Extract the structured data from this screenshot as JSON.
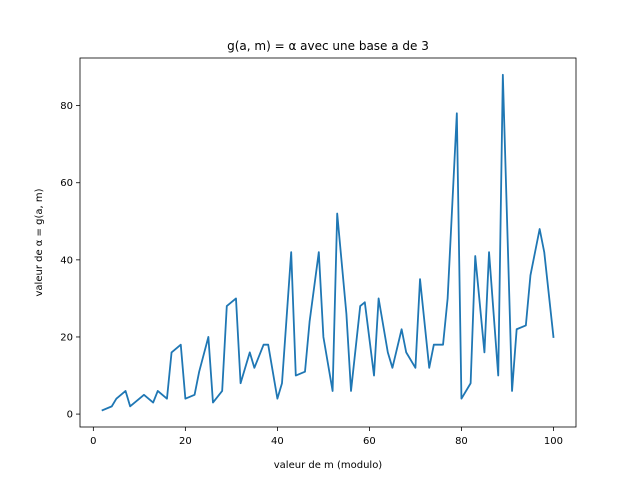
{
  "chart_data": {
    "type": "line",
    "title": "g(a, m) = α avec une base a de 3",
    "xlabel": "valeur de m (modulo)",
    "ylabel": "valeur de α = g(a, m)",
    "xlim": [
      -2.9,
      104.9
    ],
    "ylim": [
      -3.35,
      92.35
    ],
    "xticks": [
      0,
      20,
      40,
      60,
      80,
      100
    ],
    "yticks": [
      0,
      20,
      40,
      60,
      80
    ],
    "grid": false,
    "series_color": "#1f77b4",
    "x": [
      2,
      4,
      5,
      7,
      8,
      10,
      11,
      13,
      14,
      16,
      17,
      19,
      20,
      22,
      23,
      25,
      26,
      28,
      29,
      31,
      32,
      34,
      35,
      37,
      38,
      40,
      41,
      43,
      44,
      46,
      47,
      49,
      50,
      52,
      53,
      55,
      56,
      58,
      59,
      61,
      62,
      64,
      65,
      67,
      68,
      70,
      71,
      73,
      74,
      76,
      77,
      79,
      80,
      82,
      83,
      85,
      86,
      88,
      89,
      91,
      92,
      94,
      95,
      97,
      98,
      100
    ],
    "y": [
      1,
      2,
      4,
      6,
      2,
      4,
      5,
      3,
      6,
      4,
      16,
      18,
      4,
      5,
      11,
      20,
      3,
      6,
      28,
      30,
      8,
      16,
      12,
      18,
      18,
      4,
      8,
      42,
      10,
      11,
      24,
      42,
      20,
      6,
      52,
      26,
      6,
      28,
      29,
      10,
      30,
      16,
      12,
      22,
      16,
      12,
      35,
      12,
      18,
      18,
      30,
      78,
      4,
      8,
      41,
      16,
      42,
      10,
      88,
      6,
      22,
      23,
      36,
      48,
      42,
      20
    ]
  }
}
